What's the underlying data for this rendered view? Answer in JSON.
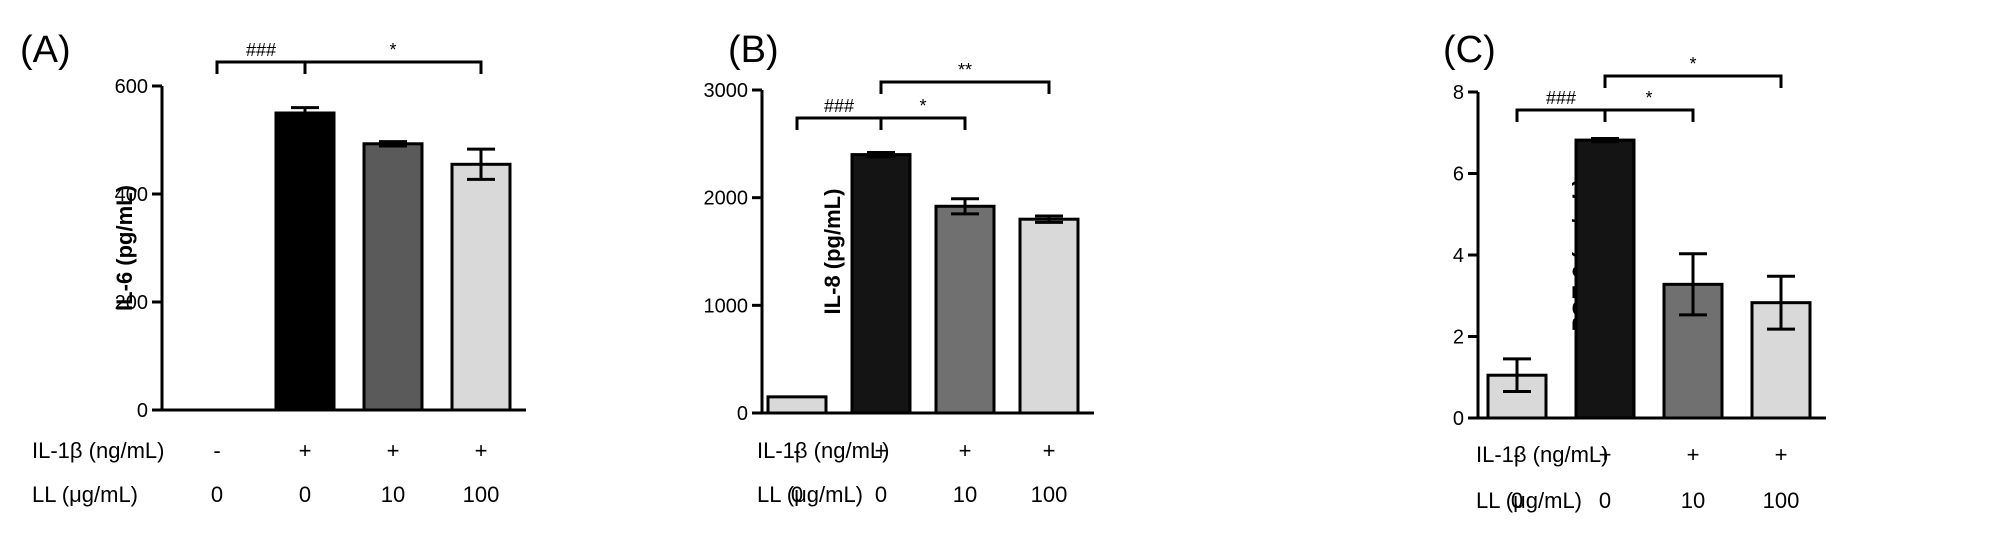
{
  "chart_data": [
    {
      "type": "bar",
      "panel_label": "(A)",
      "ylabel": "IL-6 (pg/mL)",
      "ylim": [
        0,
        600
      ],
      "yticks": [
        0,
        200,
        400,
        600
      ],
      "ytick_labels": [
        "0",
        "200",
        "400",
        "600"
      ],
      "values": [
        0,
        550,
        493,
        455
      ],
      "errors": [
        0,
        10,
        4,
        28
      ],
      "colors": [
        "#d9d9d9",
        "#000000",
        "#5a5a5a",
        "#d9d9d9"
      ],
      "conditions": [
        {
          "label": "IL-1β (ng/mL)",
          "values": [
            "-",
            "+",
            "+",
            "+"
          ]
        },
        {
          "label": "LL (μg/mL)",
          "values": [
            "0",
            "0",
            "10",
            "100"
          ]
        }
      ],
      "significance": [
        {
          "from": 0,
          "to": 1,
          "label": "###",
          "level": 0
        },
        {
          "from": 1,
          "to": 3,
          "label": "*",
          "level": 0
        }
      ]
    },
    {
      "type": "bar",
      "panel_label": "(B)",
      "ylabel": "IL-8 (pg/mL)",
      "ylim": [
        0,
        3000
      ],
      "yticks": [
        0,
        1000,
        2000,
        3000
      ],
      "ytick_labels": [
        "0",
        "1000",
        "2000",
        "3000"
      ],
      "values": [
        150,
        2400,
        1920,
        1800
      ],
      "errors": [
        0,
        20,
        70,
        30
      ],
      "colors": [
        "#d9d9d9",
        "#141414",
        "#707070",
        "#d9d9d9"
      ],
      "conditions": [
        {
          "label": "IL-1β (ng/mL)",
          "values": [
            "-",
            "+",
            "+",
            "+"
          ]
        },
        {
          "label": "LL (μg/mL)",
          "values": [
            "0",
            "0",
            "10",
            "100"
          ]
        }
      ],
      "significance": [
        {
          "from": 0,
          "to": 1,
          "label": "###",
          "level": 0
        },
        {
          "from": 1,
          "to": 2,
          "label": "*",
          "level": 0
        },
        {
          "from": 1,
          "to": 3,
          "label": "**",
          "level": 1
        }
      ]
    },
    {
      "type": "bar",
      "panel_label": "(C)",
      "ylabel": "PGE-2 (pg/mL)",
      "ylim": [
        0,
        8
      ],
      "yticks": [
        0,
        2,
        4,
        6,
        8
      ],
      "ytick_labels": [
        "0",
        "2",
        "4",
        "6",
        "8"
      ],
      "values": [
        1.05,
        6.82,
        3.28,
        2.83
      ],
      "errors": [
        0.4,
        0.04,
        0.75,
        0.65
      ],
      "colors": [
        "#d9d9d9",
        "#141414",
        "#707070",
        "#d9d9d9"
      ],
      "conditions": [
        {
          "label": "IL-1β (ng/mL)",
          "values": [
            "-",
            "+",
            "+",
            "+"
          ]
        },
        {
          "label": "LL (μg/mL)",
          "values": [
            "0",
            "0",
            "10",
            "100"
          ]
        }
      ],
      "significance": [
        {
          "from": 0,
          "to": 1,
          "label": "###",
          "level": 0
        },
        {
          "from": 1,
          "to": 2,
          "label": "*",
          "level": 0
        },
        {
          "from": 1,
          "to": 3,
          "label": "*",
          "level": 1
        }
      ]
    }
  ]
}
